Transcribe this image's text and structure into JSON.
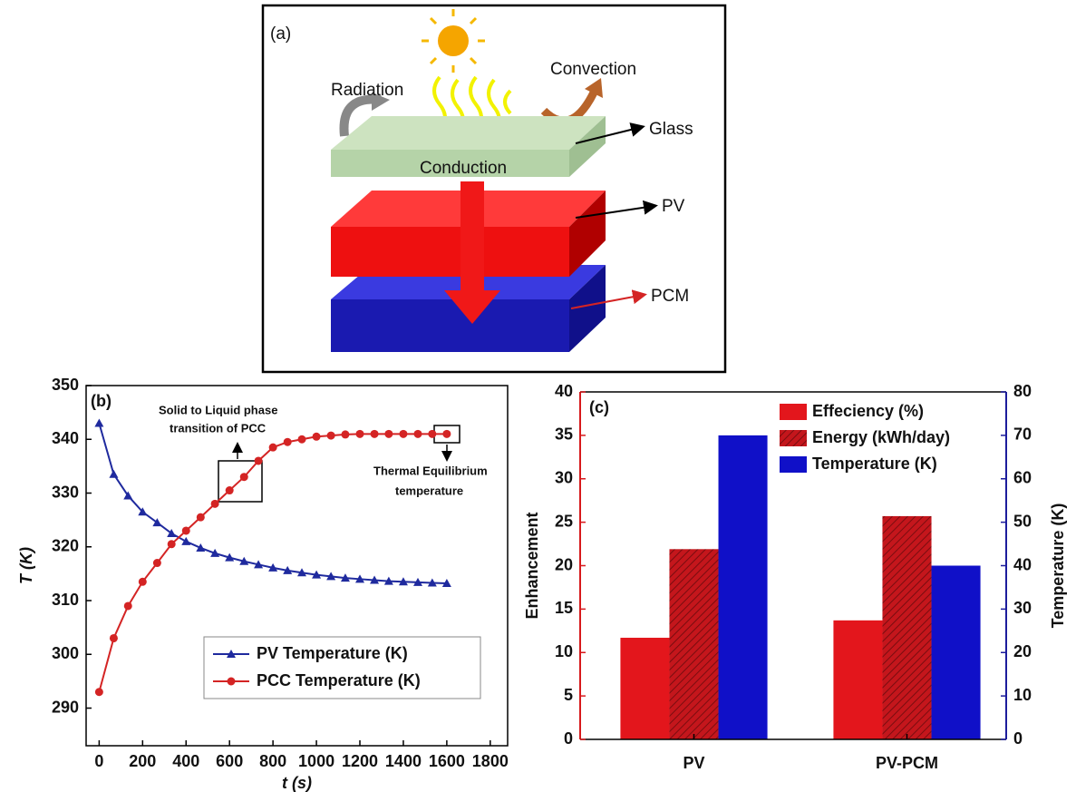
{
  "diagram": {
    "label": "(a)",
    "radiation": "Radiation",
    "convection": "Convection",
    "glass": "Glass",
    "conduction": "Conduction",
    "pv": "PV",
    "pcm": "PCM"
  },
  "chart_data": [
    {
      "type": "line",
      "panel_label": "(b)",
      "xlabel": "t (s)",
      "ylabel": "T (K)",
      "x": [
        0,
        67,
        133,
        200,
        267,
        333,
        400,
        467,
        533,
        600,
        667,
        733,
        800,
        867,
        933,
        1000,
        1067,
        1133,
        1200,
        1267,
        1333,
        1400,
        1467,
        1533,
        1600
      ],
      "series": [
        {
          "name": "PV Temperature (K)",
          "color": "#1f2a9e",
          "marker": "triangle",
          "values": [
            343,
            333.5,
            329.5,
            326.5,
            324.5,
            322.5,
            321,
            319.8,
            318.8,
            318,
            317.3,
            316.7,
            316.1,
            315.6,
            315.2,
            314.8,
            314.5,
            314.2,
            314,
            313.8,
            313.6,
            313.5,
            313.4,
            313.3,
            313.2
          ]
        },
        {
          "name": "PCC Temperature (K)",
          "color": "#d42424",
          "marker": "circle",
          "values": [
            293,
            303,
            309,
            313.5,
            317,
            320.5,
            323,
            325.5,
            328,
            330.5,
            333,
            336,
            338.5,
            339.5,
            340,
            340.5,
            340.7,
            340.9,
            341,
            341,
            341,
            341,
            341,
            341,
            341
          ]
        }
      ],
      "xlim": [
        -60,
        1880
      ],
      "ylim": [
        283,
        350
      ],
      "xticks": [
        0,
        200,
        400,
        600,
        800,
        1000,
        1200,
        1400,
        1600,
        1800
      ],
      "yticks": [
        290,
        300,
        310,
        320,
        330,
        340,
        350
      ],
      "annotations": [
        [
          "Solid to Liquid phase",
          "transition of PCC"
        ],
        [
          "Thermal Equilibrium",
          "temperature"
        ]
      ],
      "legend": "lower right"
    },
    {
      "type": "bar",
      "panel_label": "(c)",
      "ylabel": "Enhancement",
      "y2label": "Temperature (K)",
      "ycolor": "#d7191c",
      "y2color": "#1c1c9c",
      "categories": [
        "PV",
        "PV-PCM"
      ],
      "series": [
        {
          "name": "Effeciency (%)",
          "color": "#e3161c",
          "values": [
            11.7,
            13.7
          ]
        },
        {
          "name": "Energy  (kWh/day)",
          "color": "#c4161c",
          "hatch": true,
          "values": [
            21.9,
            25.7
          ]
        },
        {
          "name": "Temperature (K)",
          "color": "#1010c8",
          "axis": "y2",
          "values": [
            70,
            40
          ]
        }
      ],
      "ylim": [
        0,
        40
      ],
      "yticks": [
        0,
        5,
        10,
        15,
        20,
        25,
        30,
        35,
        40
      ],
      "y2lim": [
        0,
        80
      ],
      "y2ticks": [
        0,
        10,
        20,
        30,
        40,
        50,
        60,
        70,
        80
      ],
      "legend": "upper center"
    }
  ]
}
